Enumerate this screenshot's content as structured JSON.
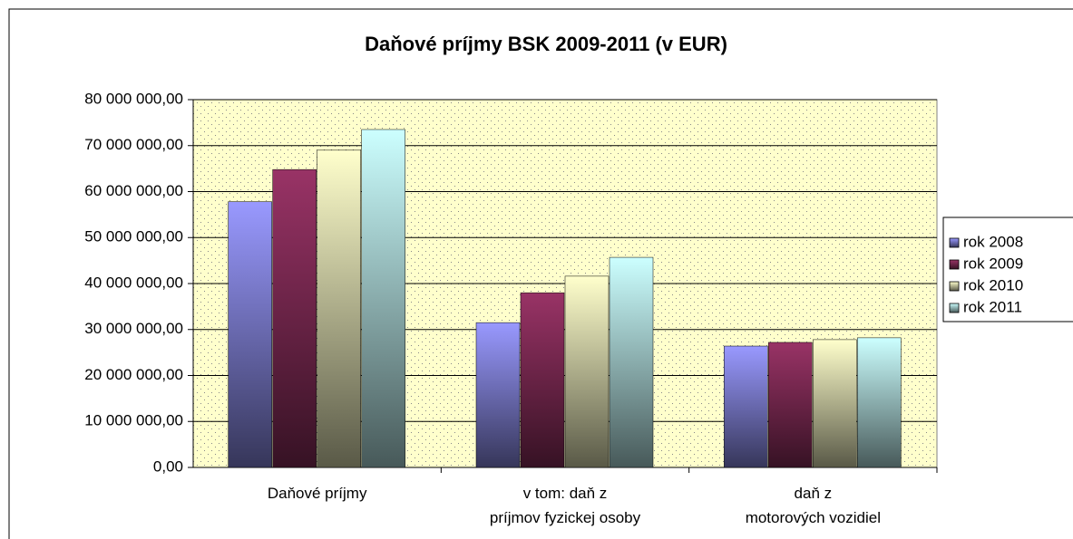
{
  "chart_data": {
    "type": "bar",
    "title": "Daňové príjmy BSK 2009-2011 (v EUR)",
    "categories": [
      [
        "Daňové príjmy"
      ],
      [
        "v tom:  daň z",
        "príjmov fyzickej osoby"
      ],
      [
        "daň z",
        "motorových vozidiel"
      ]
    ],
    "series": [
      {
        "name": "rok 2008",
        "color": "#9999ff",
        "values": [
          57800000,
          31500000,
          26400000
        ]
      },
      {
        "name": "rok 2009",
        "color": "#993366",
        "values": [
          64800000,
          38000000,
          27200000
        ]
      },
      {
        "name": "rok 2010",
        "color": "#ffffcc",
        "values": [
          69000000,
          41600000,
          27800000
        ]
      },
      {
        "name": "rok 2011",
        "color": "#ccffff",
        "values": [
          73500000,
          45700000,
          28200000
        ]
      }
    ],
    "ylim": [
      0,
      80000000
    ],
    "yticks": [
      {
        "value": 0,
        "label": "0,00"
      },
      {
        "value": 10000000,
        "label": "10 000 000,00"
      },
      {
        "value": 20000000,
        "label": "20 000 000,00"
      },
      {
        "value": 30000000,
        "label": "30 000 000,00"
      },
      {
        "value": 40000000,
        "label": "40 000 000,00"
      },
      {
        "value": 50000000,
        "label": "50 000 000,00"
      },
      {
        "value": 60000000,
        "label": "60 000 000,00"
      },
      {
        "value": 70000000,
        "label": "70 000 000,00"
      },
      {
        "value": 80000000,
        "label": "80 000 000,00"
      }
    ],
    "grid": true,
    "legend": "right"
  }
}
